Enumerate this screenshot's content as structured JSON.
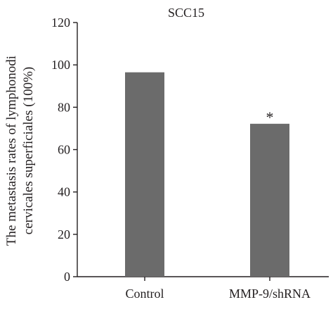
{
  "chart_data": {
    "type": "bar",
    "title": "SCC15",
    "ylabel_line1": "The metastasis rates of lymphonodi",
    "ylabel_line2": "cervicales superficiales (100%)",
    "xlabel": "",
    "categories": [
      "Control",
      "MMP-9/shRNA"
    ],
    "values": [
      96.5,
      72.2
    ],
    "annotations": [
      "",
      "*"
    ],
    "ylim": [
      0,
      120
    ],
    "yticks": [
      0,
      20,
      40,
      60,
      80,
      100,
      120
    ],
    "bar_color": "#6b6b6b",
    "axis_color": "#231f20",
    "grid": false,
    "legend": "none"
  }
}
